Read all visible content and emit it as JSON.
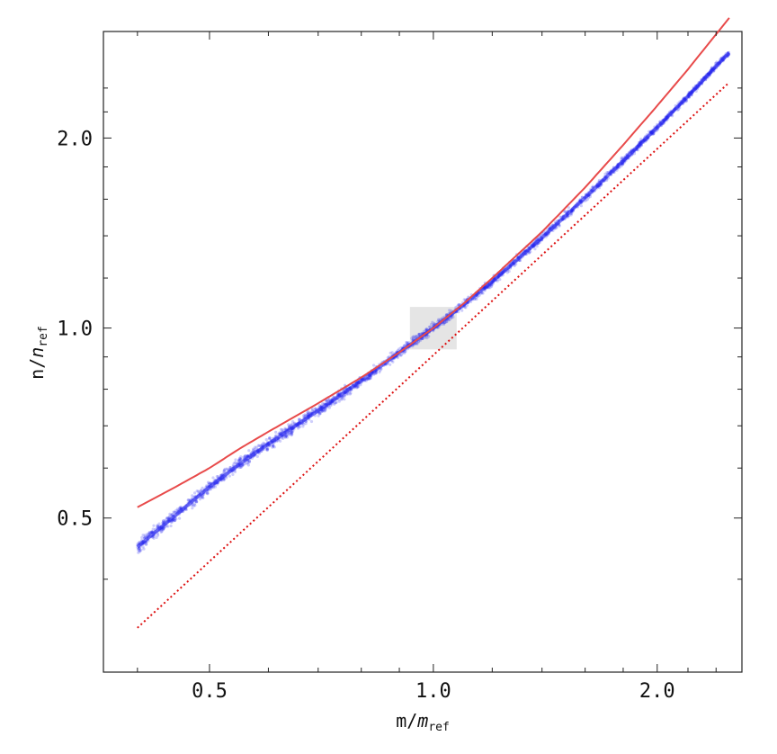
{
  "chart_data": {
    "type": "scatter",
    "xscale": "log",
    "yscale": "log",
    "xlim": [
      0.36,
      2.6
    ],
    "ylim": [
      0.285,
      2.95
    ],
    "grid": false,
    "xlabel": {
      "main": "m",
      "italic": "m",
      "sub": "ref"
    },
    "ylabel": {
      "main": "n",
      "italic": "n",
      "sub": "ref"
    },
    "xticks": [
      {
        "value": 0.5,
        "label": "0.5"
      },
      {
        "value": 1.0,
        "label": "1.0"
      },
      {
        "value": 2.0,
        "label": "2.0"
      }
    ],
    "yticks": [
      {
        "value": 0.5,
        "label": "0.5"
      },
      {
        "value": 1.0,
        "label": "1.0"
      },
      {
        "value": 2.0,
        "label": "2.0"
      }
    ],
    "highlight_box": {
      "x": [
        0.93,
        1.075
      ],
      "y": [
        0.925,
        1.08
      ],
      "color": "#e5e5e5"
    },
    "series": [
      {
        "kind": "scatter-band",
        "color": "#2222ee",
        "x": [
          0.4,
          0.45,
          0.5,
          0.55,
          0.6,
          0.7,
          0.8,
          0.9,
          1.0,
          1.1,
          1.2,
          1.4,
          1.6,
          1.8,
          2.0,
          2.2,
          2.4,
          2.5
        ],
        "y": [
          0.45,
          0.505,
          0.56,
          0.61,
          0.655,
          0.74,
          0.825,
          0.915,
          1.0,
          1.09,
          1.185,
          1.39,
          1.61,
          1.84,
          2.08,
          2.33,
          2.6,
          2.73
        ]
      },
      {
        "kind": "line",
        "color": "#e84a4a",
        "x": [
          0.4,
          0.45,
          0.5,
          0.55,
          0.6,
          0.7,
          0.8,
          0.9,
          1.0,
          1.1,
          1.2,
          1.4,
          1.6,
          1.8,
          2.0,
          2.2,
          2.4,
          2.5
        ],
        "y": [
          0.52,
          0.56,
          0.6,
          0.645,
          0.685,
          0.76,
          0.835,
          0.915,
          1.0,
          1.095,
          1.2,
          1.42,
          1.67,
          1.95,
          2.25,
          2.57,
          2.92,
          3.1
        ]
      },
      {
        "kind": "dotted-line",
        "color": "#dd1111",
        "x": [
          0.4,
          2.5
        ],
        "y": [
          0.335,
          2.45
        ]
      }
    ]
  }
}
